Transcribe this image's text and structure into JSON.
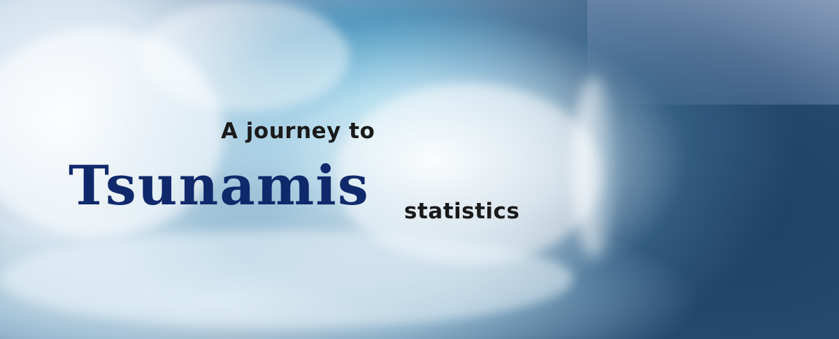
{
  "hero": {
    "image": "ocean-wave-background",
    "line1": "A journey to",
    "title": "Tsunamis",
    "line2": "statistics"
  },
  "colors": {
    "title": "#10296b",
    "text": "#1a1a1a"
  }
}
